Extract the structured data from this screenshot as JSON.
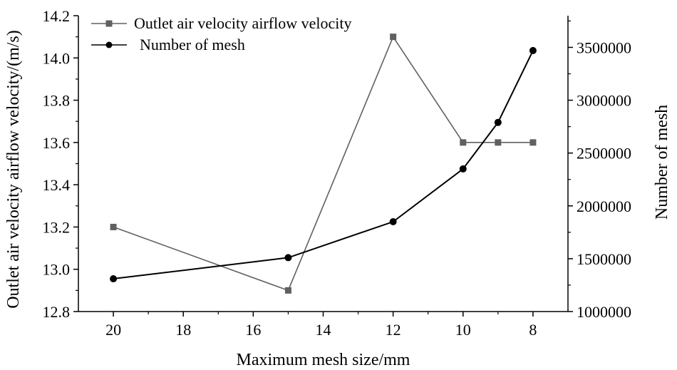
{
  "chart_data": {
    "type": "line",
    "x": [
      20,
      15,
      12,
      10,
      9,
      8
    ],
    "xlabel": "Maximum mesh size/mm",
    "xlim": [
      21,
      7
    ],
    "xticks": [
      20,
      18,
      16,
      14,
      12,
      10,
      8
    ],
    "xtick_labels": [
      "20",
      "18",
      "16",
      "14",
      "12",
      "10",
      "8"
    ],
    "ylabel": "Outlet air velocity airflow velocity/(m/s)",
    "ylim": [
      12.8,
      14.2
    ],
    "yticks": [
      12.8,
      13.0,
      13.2,
      13.4,
      13.6,
      13.8,
      14.0,
      14.2
    ],
    "ytick_labels": [
      "12.8",
      "13.0",
      "13.2",
      "13.4",
      "13.6",
      "13.8",
      "14.0",
      "14.2"
    ],
    "y2label": "Number of mesh",
    "y2lim": [
      1000000,
      3800000
    ],
    "y2ticks": [
      1000000,
      1500000,
      2000000,
      2500000,
      3000000,
      3500000
    ],
    "y2tick_labels": [
      "1000000",
      "1500000",
      "2000000",
      "2500000",
      "3000000",
      "3500000"
    ],
    "legend_position": "top-left",
    "series": [
      {
        "name": "Outlet air velocity airflow velocity",
        "axis": "left",
        "marker": "square",
        "color": "#606060",
        "values": [
          13.2,
          12.9,
          14.1,
          13.6,
          13.6,
          13.6
        ]
      },
      {
        "name": "Number of mesh",
        "axis": "right",
        "marker": "circle",
        "color": "#000000",
        "values": [
          1310000,
          1510000,
          1850000,
          2350000,
          2790000,
          3470000
        ]
      }
    ]
  }
}
